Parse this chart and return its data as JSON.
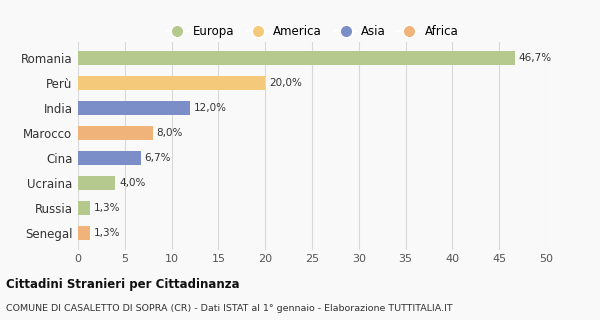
{
  "categories": [
    "Romania",
    "Perù",
    "India",
    "Marocco",
    "Cina",
    "Ucraina",
    "Russia",
    "Senegal"
  ],
  "values": [
    46.7,
    20.0,
    12.0,
    8.0,
    6.7,
    4.0,
    1.3,
    1.3
  ],
  "labels": [
    "46,7%",
    "20,0%",
    "12,0%",
    "8,0%",
    "6,7%",
    "4,0%",
    "1,3%",
    "1,3%"
  ],
  "colors": [
    "#b5c98e",
    "#f5c97a",
    "#7b8ec8",
    "#f0b47a",
    "#7b8ec8",
    "#b5c98e",
    "#b5c98e",
    "#f0b47a"
  ],
  "legend_labels": [
    "Europa",
    "America",
    "Asia",
    "Africa"
  ],
  "legend_colors": [
    "#b5c98e",
    "#f5c97a",
    "#7b8ec8",
    "#f0b47a"
  ],
  "xlim": [
    0,
    50
  ],
  "xticks": [
    0,
    5,
    10,
    15,
    20,
    25,
    30,
    35,
    40,
    45,
    50
  ],
  "title_bold": "Cittadini Stranieri per Cittadinanza",
  "subtitle": "COMUNE DI CASALETTO DI SOPRA (CR) - Dati ISTAT al 1° gennaio - Elaborazione TUTTITALIA.IT",
  "background_color": "#f9f9f9",
  "grid_color": "#d8d8d8"
}
